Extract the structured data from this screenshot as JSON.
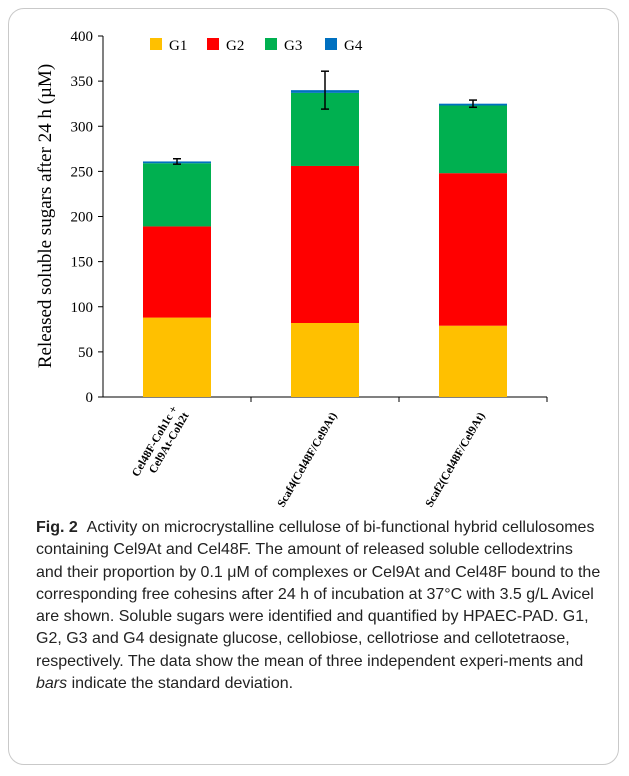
{
  "figure": {
    "label": "Fig. 2",
    "caption_html": "Activity on microcrystalline cellulose of bi-functional hybrid cellulosomes containing Cel9At and Cel48F. The amount of released soluble cellodextrins and their proportion by 0.1 μM of complexes or Cel9At and Cel48F bound to the corresponding free cohesins after 24 h of incubation at 37°C with 3.5 g/L Avicel are shown. Soluble sugars were identified and quantified by HPAEC-PAD. G1, G2, G3 and G4 designate glucose, cellobiose, cellotriose and cellotetraose, respectively. The data show the mean of three independent experi-ments and <i>bars</i> indicate the standard deviation."
  },
  "chart_data": {
    "type": "bar",
    "stacked": true,
    "ylabel": "Released soluble sugars after 24 h (µM)",
    "xlabel": "",
    "ylim": [
      0,
      400
    ],
    "yticks": [
      0,
      50,
      100,
      150,
      200,
      250,
      300,
      350,
      400
    ],
    "categories": [
      [
        "Cel48F-Coh1c +",
        "Cel9At-Coh2t"
      ],
      [
        "Scaf4(Cel48F/Cel9At)"
      ],
      [
        "Scaf2(Cel48F/Cel9At)"
      ]
    ],
    "series": [
      {
        "name": "G1",
        "color": "#ffc000",
        "values": [
          88,
          82,
          79
        ]
      },
      {
        "name": "G2",
        "color": "#ff0000",
        "values": [
          101,
          174,
          169
        ]
      },
      {
        "name": "G3",
        "color": "#00b050",
        "values": [
          70,
          81,
          75
        ]
      },
      {
        "name": "G4",
        "color": "#0070c0",
        "values": [
          2,
          3,
          2
        ]
      }
    ],
    "totals": [
      261,
      340,
      325
    ],
    "error": [
      3,
      21,
      4
    ],
    "legend_position": "top-left",
    "grid": false
  }
}
